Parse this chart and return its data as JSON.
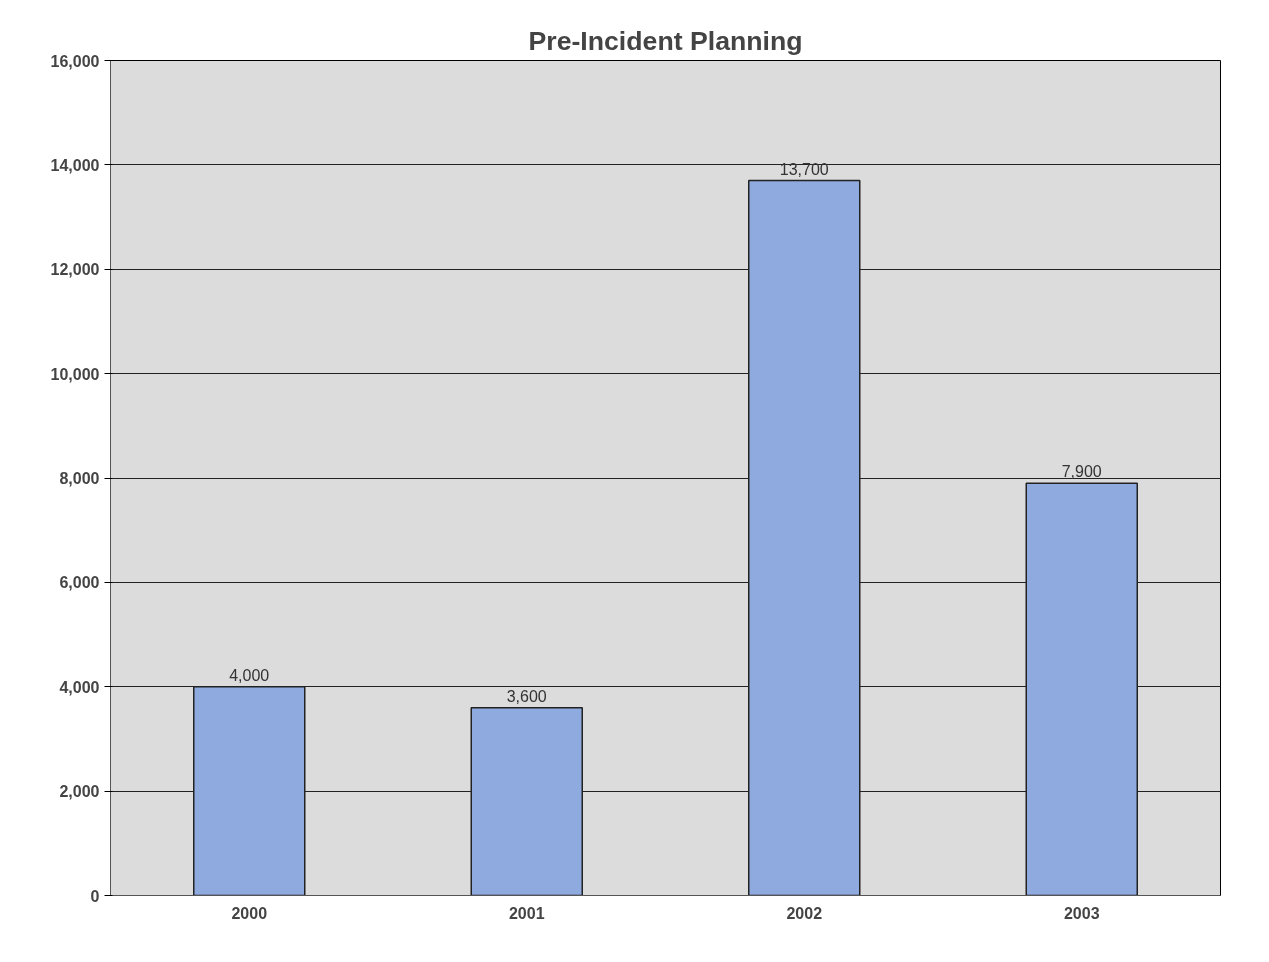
{
  "chart_data": {
    "type": "bar",
    "title": "Pre-Incident Planning",
    "categories": [
      "2000",
      "2001",
      "2002",
      "2003"
    ],
    "values": [
      4000,
      3600,
      13700,
      7900
    ],
    "color": "#8eaadf",
    "ylim": [
      0,
      16000
    ],
    "yticks": [
      {
        "value": 0,
        "label": "0"
      },
      {
        "value": 2000,
        "label": "2,000"
      },
      {
        "value": 4000,
        "label": "4,000"
      },
      {
        "value": 6000,
        "label": "6,000"
      },
      {
        "value": 8000,
        "label": "8,000"
      },
      {
        "value": 10000,
        "label": "10,000"
      },
      {
        "value": 12000,
        "label": "12,000"
      },
      {
        "value": 14000,
        "label": "14,000"
      },
      {
        "value": 16000,
        "label": "16,000"
      }
    ],
    "value_labels": [
      "4,000",
      "3,600",
      "13,700",
      "7,900"
    ],
    "grid": "y"
  }
}
